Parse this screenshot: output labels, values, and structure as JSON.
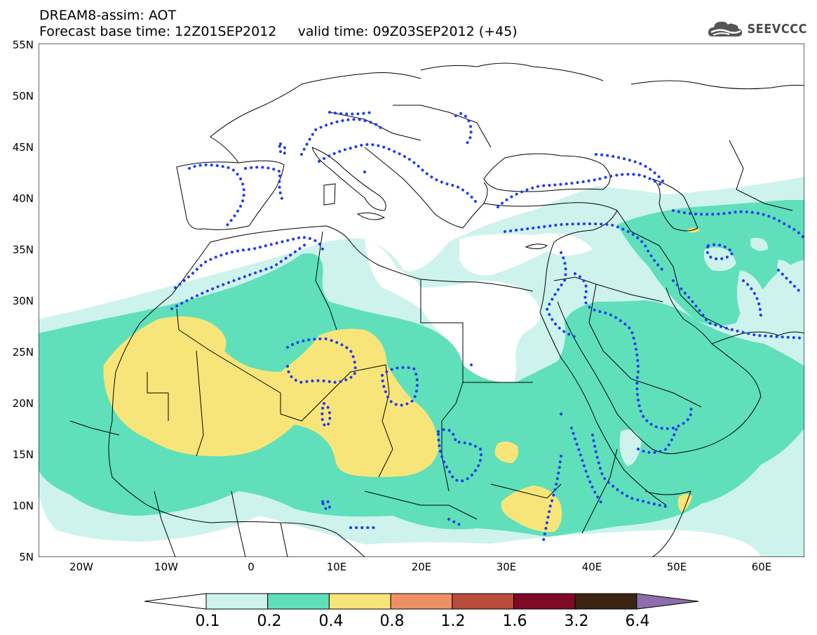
{
  "header": {
    "title_line1": "DREAM8-assim: AOT",
    "title_line2": "Forecast base time: 12Z01SEP2012     valid time: 09Z03SEP2012 (+45)",
    "logo_text": "SEEVCCC",
    "logo_icon": "cloud-icon"
  },
  "map": {
    "lon_range": [
      -25,
      65
    ],
    "lat_range": [
      5,
      55
    ],
    "lat_labels": [
      "55N",
      "50N",
      "45N",
      "40N",
      "35N",
      "30N",
      "25N",
      "20N",
      "15N",
      "10N",
      "5N"
    ],
    "lon_labels": [
      "20W",
      "10W",
      "0",
      "10E",
      "20E",
      "30E",
      "40E",
      "50E",
      "60E"
    ]
  },
  "legend": {
    "labels": [
      "0.1",
      "0.2",
      "0.4",
      "0.8",
      "1.2",
      "1.6",
      "3.2",
      "6.4"
    ],
    "colors": [
      "#ffffff",
      "#cdf3ec",
      "#5fe0ba",
      "#f8e57a",
      "#ee9066",
      "#b94c3a",
      "#7e0a26",
      "#3b2412",
      "#8f6cab"
    ]
  }
}
